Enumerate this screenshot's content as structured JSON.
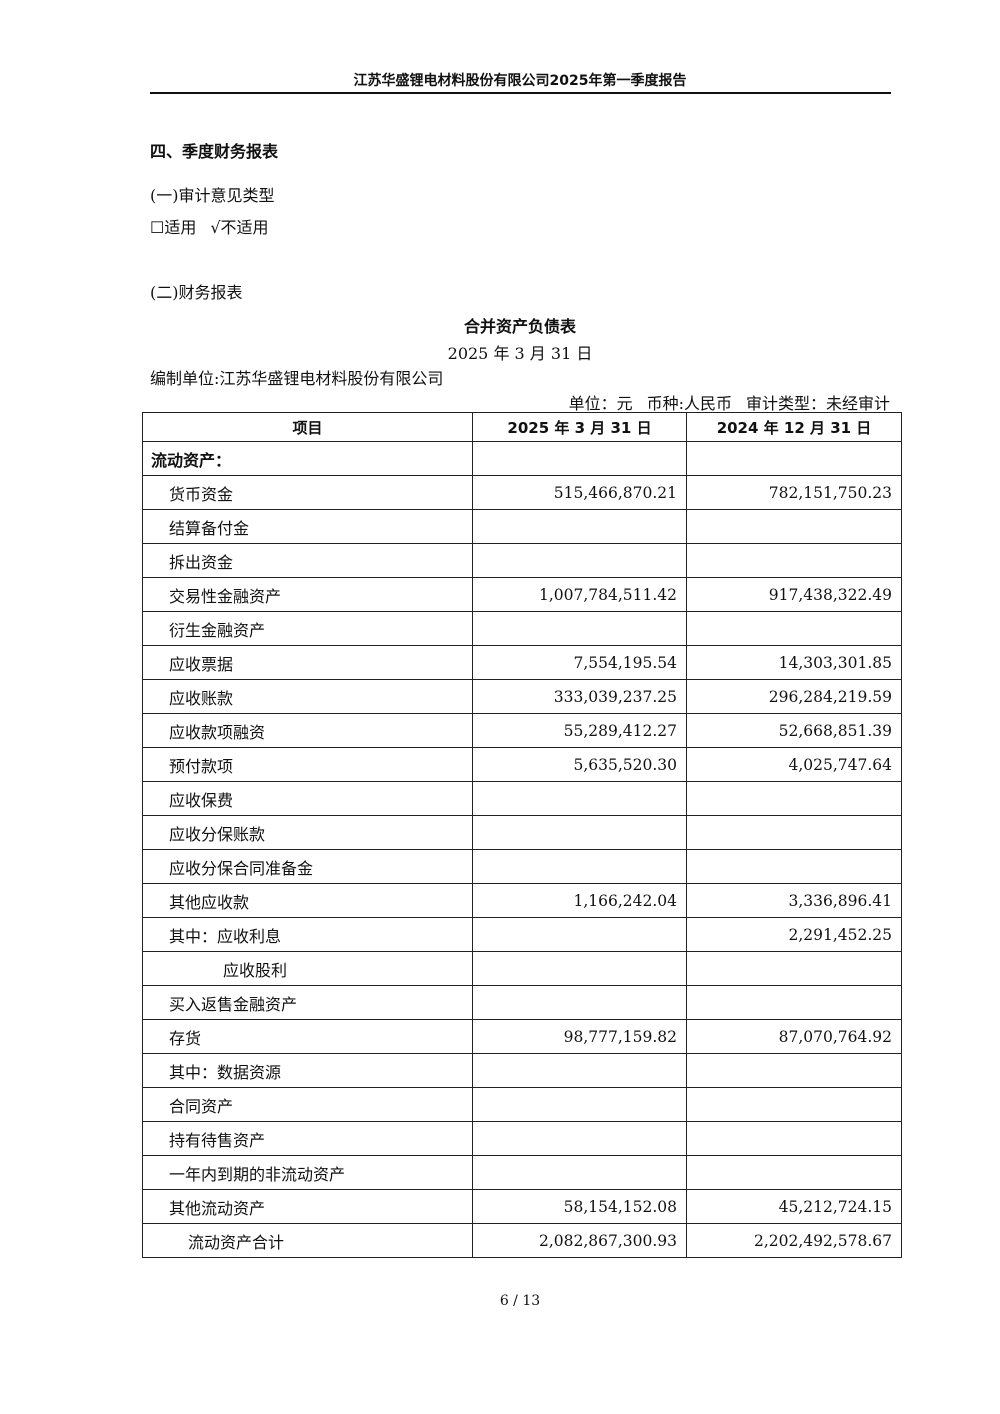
{
  "header": {
    "title": "江苏华盛锂电材料股份有限公司2025年第一季度报告"
  },
  "section": "四、季度财务报表",
  "audit": {
    "heading": "(一)审计意见类型",
    "opt1": "☐适用",
    "opt2": "√不适用"
  },
  "fin_heading": "(二)财务报表",
  "report": {
    "title": "合并资产负债表",
    "date": "2025 年 3 月 31 日",
    "unit_org": "编制单位:江苏华盛锂电材料股份有限公司",
    "meta": {
      "unit": "单位：元",
      "currency": "币种:人民币",
      "audit_type": "审计类型：未经审计"
    }
  },
  "table": {
    "headers": [
      "项目",
      "2025 年 3 月 31 日",
      "2024 年 12 月 31 日"
    ],
    "rows": [
      {
        "item": "流动资产：",
        "a": "",
        "b": "",
        "indent": 0,
        "bold": true
      },
      {
        "item": "货币资金",
        "a": "515,466,870.21",
        "b": "782,151,750.23",
        "indent": 1
      },
      {
        "item": "结算备付金",
        "a": "",
        "b": "",
        "indent": 1
      },
      {
        "item": "拆出资金",
        "a": "",
        "b": "",
        "indent": 1
      },
      {
        "item": "交易性金融资产",
        "a": "1,007,784,511.42",
        "b": "917,438,322.49",
        "indent": 1
      },
      {
        "item": "衍生金融资产",
        "a": "",
        "b": "",
        "indent": 1
      },
      {
        "item": "应收票据",
        "a": "7,554,195.54",
        "b": "14,303,301.85",
        "indent": 1
      },
      {
        "item": "应收账款",
        "a": "333,039,237.25",
        "b": "296,284,219.59",
        "indent": 1
      },
      {
        "item": "应收款项融资",
        "a": "55,289,412.27",
        "b": "52,668,851.39",
        "indent": 1
      },
      {
        "item": "预付款项",
        "a": "5,635,520.30",
        "b": "4,025,747.64",
        "indent": 1
      },
      {
        "item": "应收保费",
        "a": "",
        "b": "",
        "indent": 1
      },
      {
        "item": "应收分保账款",
        "a": "",
        "b": "",
        "indent": 1
      },
      {
        "item": "应收分保合同准备金",
        "a": "",
        "b": "",
        "indent": 1
      },
      {
        "item": "其他应收款",
        "a": "1,166,242.04",
        "b": "3,336,896.41",
        "indent": 1
      },
      {
        "item": "其中：应收利息",
        "a": "",
        "b": "2,291,452.25",
        "indent": 1
      },
      {
        "item": "应收股利",
        "a": "",
        "b": "",
        "indent": 3
      },
      {
        "item": "买入返售金融资产",
        "a": "",
        "b": "",
        "indent": 1
      },
      {
        "item": "存货",
        "a": "98,777,159.82",
        "b": "87,070,764.92",
        "indent": 1
      },
      {
        "item": "其中：数据资源",
        "a": "",
        "b": "",
        "indent": 1
      },
      {
        "item": "合同资产",
        "a": "",
        "b": "",
        "indent": 1
      },
      {
        "item": "持有待售资产",
        "a": "",
        "b": "",
        "indent": 1
      },
      {
        "item": "一年内到期的非流动资产",
        "a": "",
        "b": "",
        "indent": 1
      },
      {
        "item": "其他流动资产",
        "a": "58,154,152.08",
        "b": "45,212,724.15",
        "indent": 1
      },
      {
        "item": "流动资产合计",
        "a": "2,082,867,300.93",
        "b": "2,202,492,578.67",
        "indent": 2
      }
    ]
  },
  "page": "6 / 13"
}
